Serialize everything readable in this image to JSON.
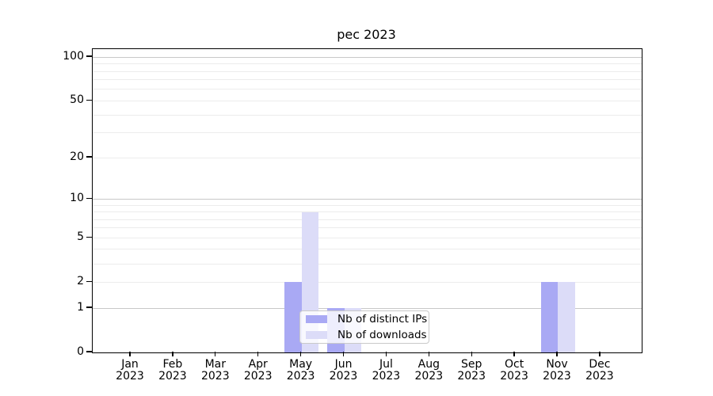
{
  "chart_data": {
    "type": "bar",
    "title": "pec 2023",
    "categories": [
      "Jan 2023",
      "Feb 2023",
      "Mar 2023",
      "Apr 2023",
      "May 2023",
      "Jun 2023",
      "Jul 2023",
      "Aug 2023",
      "Sep 2023",
      "Oct 2023",
      "Nov 2023",
      "Dec 2023"
    ],
    "series": [
      {
        "name": "Nb of distinct IPs",
        "color": "#a9a9f4",
        "values": [
          0,
          0,
          0,
          0,
          2,
          1,
          0,
          0,
          0,
          0,
          2,
          0
        ]
      },
      {
        "name": "Nb of downloads",
        "color": "#dcdcf8",
        "values": [
          0,
          0,
          0,
          0,
          8,
          1,
          0,
          0,
          0,
          0,
          2,
          0
        ]
      }
    ],
    "xlabel": "",
    "ylabel": "",
    "yscale": "log1p",
    "ylim": [
      0,
      114
    ],
    "yticks": [
      0,
      1,
      2,
      5,
      10,
      20,
      50,
      100
    ],
    "ytick_major_grid": [
      1,
      10,
      100
    ],
    "ytick_minor_grid": [
      2,
      3,
      4,
      5,
      6,
      7,
      8,
      9,
      20,
      30,
      40,
      50,
      60,
      70,
      80,
      90
    ],
    "grid": "horizontal",
    "legend": {
      "position": "inside-lower-center",
      "entries": [
        "Nb of distinct IPs",
        "Nb of downloads"
      ]
    },
    "colors": {
      "bar_distinct_ips": "#a9a9f4",
      "bar_downloads": "#dcdcf8",
      "major_grid": "#c8c8c8",
      "minor_grid": "#ececec",
      "spine": "#000000",
      "text": "#000000",
      "legend_border": "#c9c9c9",
      "background": "#ffffff"
    }
  }
}
